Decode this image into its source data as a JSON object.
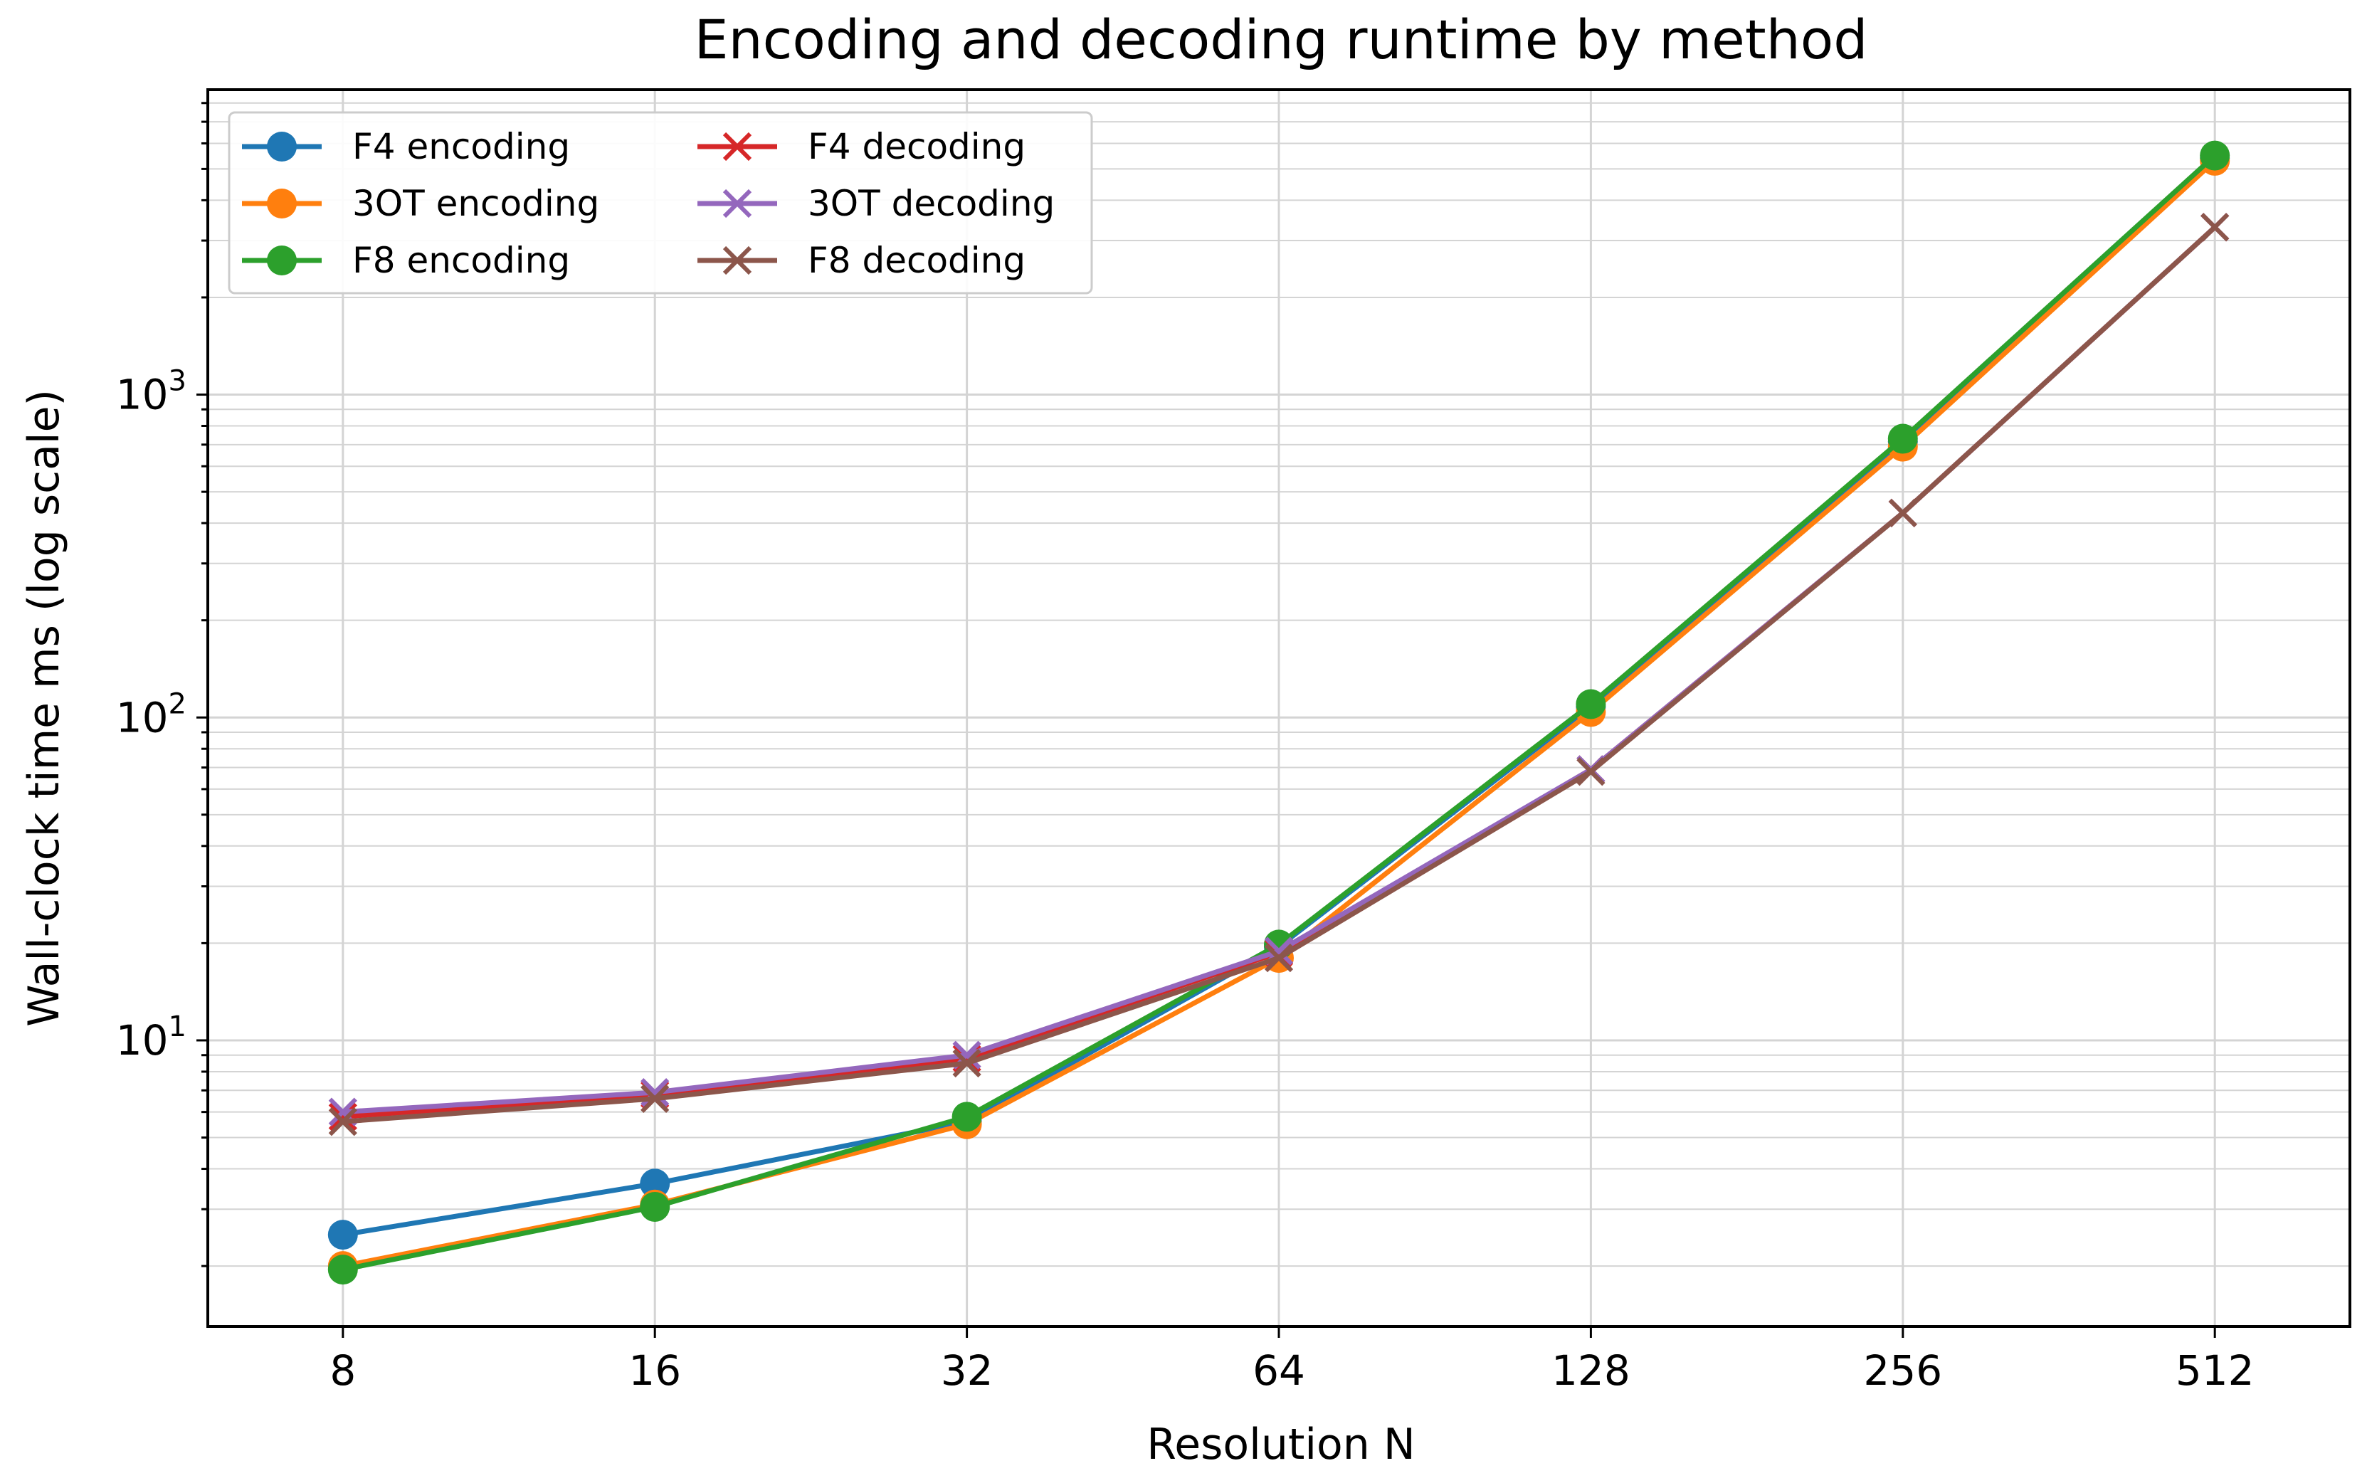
{
  "chart_data": {
    "type": "line",
    "title": "Encoding and decoding runtime by method",
    "xlabel": "Resolution N",
    "ylabel": "Wall-clock time ms (log scale)",
    "x_scale": "log2",
    "y_scale": "log10",
    "categories": [
      "8",
      "16",
      "32",
      "64",
      "128",
      "256",
      "512"
    ],
    "x": [
      8,
      16,
      32,
      64,
      128,
      256,
      512
    ],
    "ylim": [
      1.3,
      8800
    ],
    "y_tick_labels": [
      "10^1",
      "10^2",
      "10^3"
    ],
    "grid": true,
    "legend_position": "top-left",
    "series": [
      {
        "name": "F4 encoding",
        "color": "#1f77b4",
        "marker": "circle",
        "values": [
          2.5,
          3.6,
          5.6,
          19.5,
          108,
          715,
          5400
        ]
      },
      {
        "name": "3OT encoding",
        "color": "#ff7f0e",
        "marker": "circle",
        "values": [
          2.0,
          3.1,
          5.5,
          18.0,
          104,
          690,
          5300
        ]
      },
      {
        "name": "F8 encoding",
        "color": "#2ca02c",
        "marker": "circle",
        "values": [
          1.95,
          3.05,
          5.8,
          19.8,
          110,
          730,
          5500
        ]
      },
      {
        "name": "F4 decoding",
        "color": "#d62728",
        "marker": "x",
        "values": [
          5.8,
          6.8,
          8.8,
          18.7,
          69,
          430,
          3300
        ]
      },
      {
        "name": "3OT decoding",
        "color": "#9467bd",
        "marker": "x",
        "values": [
          6.0,
          6.9,
          9.0,
          18.9,
          69,
          430,
          3300
        ]
      },
      {
        "name": "F8 decoding",
        "color": "#8c564b",
        "marker": "x",
        "values": [
          5.6,
          6.6,
          8.5,
          18.0,
          68,
          430,
          3300
        ]
      }
    ]
  }
}
